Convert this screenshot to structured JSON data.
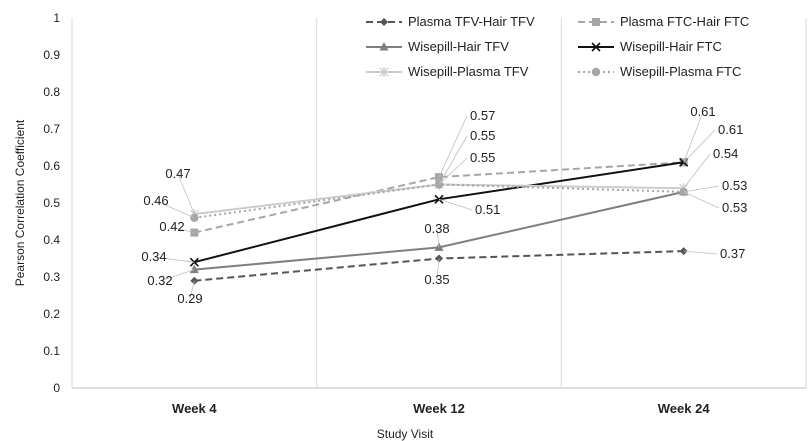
{
  "chart_data": {
    "type": "line",
    "categories": [
      "Week 4",
      "Week 12",
      "Week 24"
    ],
    "xlabel": "Study Visit",
    "ylabel": "Pearson Correlation Coefficient",
    "ylim": [
      0,
      1
    ],
    "yticks": [
      "0",
      "0.1",
      "0.2",
      "0.3",
      "0.4",
      "0.5",
      "0.6",
      "0.7",
      "0.8",
      "0.9",
      "1"
    ],
    "grid": "vertical separators between categories",
    "legend": "top",
    "series": [
      {
        "name": "Plasma TFV-Hair TFV",
        "values": [
          0.29,
          0.35,
          0.37
        ],
        "labels": [
          "0.29",
          "0.35",
          "0.37"
        ],
        "color": "#555555",
        "dash": "dashed",
        "marker": "diamond"
      },
      {
        "name": "Plasma FTC-Hair FTC",
        "values": [
          0.42,
          0.57,
          0.61
        ],
        "labels": [
          "0.42",
          "0.57",
          "0.61"
        ],
        "color": "#a6a6a6",
        "dash": "dashed",
        "marker": "square"
      },
      {
        "name": "Wisepill-Hair TFV",
        "values": [
          0.32,
          0.38,
          0.53
        ],
        "labels": [
          "0.32",
          "0.38",
          "0.53"
        ],
        "color": "#7f7f7f",
        "dash": "solid",
        "marker": "triangle"
      },
      {
        "name": "Wisepill-Hair FTC",
        "values": [
          0.34,
          0.51,
          0.61
        ],
        "labels": [
          "0.34",
          "0.51",
          "0.61"
        ],
        "color": "#111111",
        "dash": "solid",
        "marker": "x"
      },
      {
        "name": "Wisepill-Plasma TFV",
        "values": [
          0.47,
          0.55,
          0.54
        ],
        "labels": [
          "0.47",
          "0.55",
          "0.54"
        ],
        "color": "#cccccc",
        "dash": "solid",
        "marker": "star"
      },
      {
        "name": "Wisepill-Plasma FTC",
        "values": [
          0.46,
          0.55,
          0.53
        ],
        "labels": [
          "0.46",
          "0.55",
          "0.53"
        ],
        "color": "#a6a6a6",
        "dash": "dotted",
        "marker": "circle"
      }
    ]
  }
}
